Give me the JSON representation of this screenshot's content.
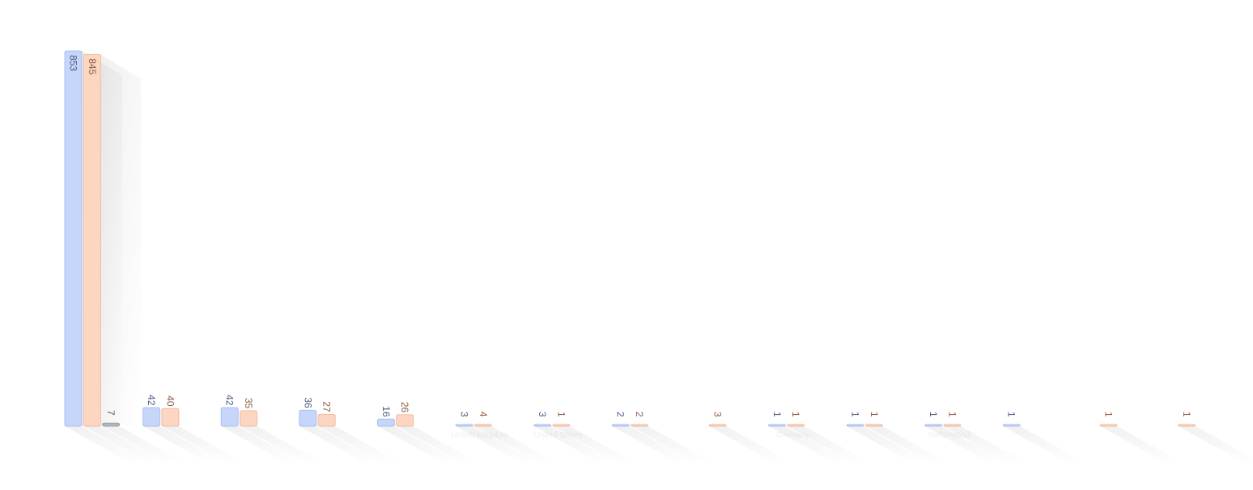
{
  "chart_data": {
    "type": "bar",
    "categories": [
      null,
      null,
      null,
      null,
      null,
      "United Kingdom",
      "United States",
      null,
      null,
      "Germany",
      null,
      "Switzerland",
      null,
      null,
      null
    ],
    "series": [
      {
        "color": "#c6d6fa",
        "values": [
          853,
          42,
          42,
          36,
          16,
          3,
          3,
          2,
          null,
          1,
          1,
          1,
          1,
          null,
          null
        ]
      },
      {
        "color": "#fdd6c2",
        "values": [
          845,
          40,
          35,
          27,
          26,
          4,
          1,
          2,
          3,
          1,
          1,
          1,
          null,
          1,
          1
        ]
      },
      {
        "color": "#b4b6bf",
        "values": [
          7,
          null,
          null,
          null,
          null,
          null,
          null,
          null,
          null,
          null,
          null,
          null,
          null,
          null,
          null
        ]
      }
    ]
  }
}
